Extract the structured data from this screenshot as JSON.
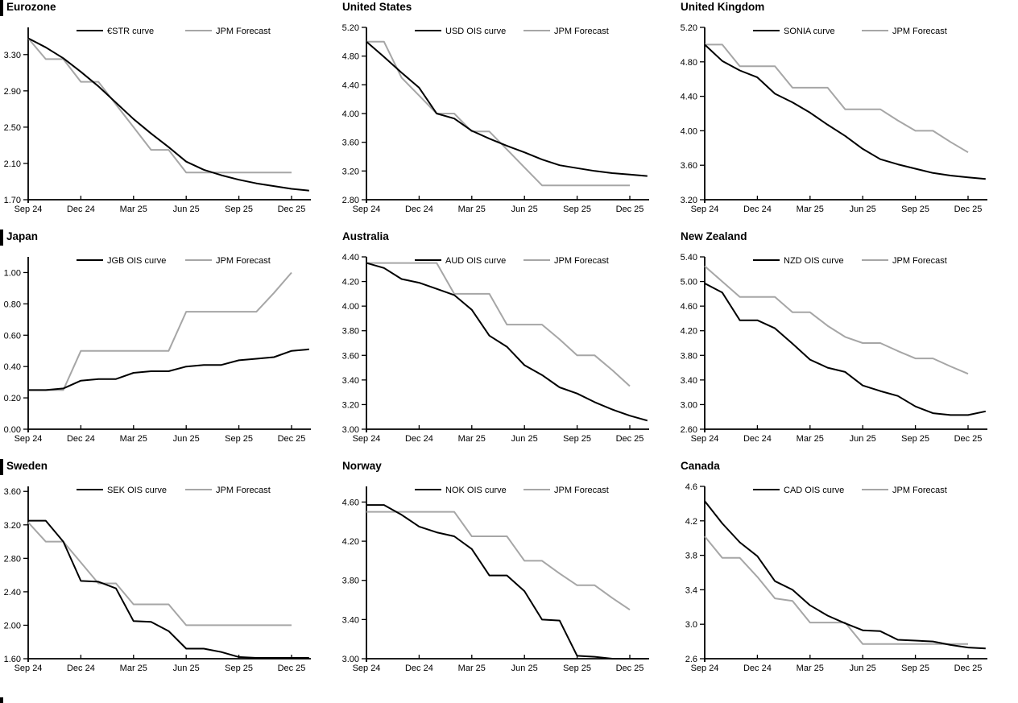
{
  "colors": {
    "ois_line": "#000000",
    "forecast_line": "#a6a6a6",
    "axis": "#000000",
    "text": "#000000",
    "background": "#ffffff"
  },
  "x_tick_labels": [
    "Sep 24",
    "Dec 24",
    "Mar 25",
    "Jun 25",
    "Sep 25",
    "Dec 25"
  ],
  "chart_data": [
    {
      "type": "line",
      "title": "Eurozone",
      "title_bar": true,
      "legend": [
        "€STR curve",
        "JPM Forecast"
      ],
      "x_tick_labels": [
        "Sep 24",
        "Dec 24",
        "Mar 25",
        "Jun 25",
        "Sep 25",
        "Dec 25"
      ],
      "ylim": [
        1.7,
        3.6
      ],
      "yticks": [
        1.7,
        2.1,
        2.5,
        2.9,
        3.3
      ],
      "y_decimals": 2,
      "series": [
        {
          "name": "€STR curve",
          "color": "#000000",
          "values": [
            3.48,
            3.38,
            3.26,
            3.11,
            2.95,
            2.77,
            2.59,
            2.43,
            2.28,
            2.12,
            2.03,
            1.97,
            1.92,
            1.88,
            1.85,
            1.82,
            1.8
          ]
        },
        {
          "name": "JPM Forecast",
          "color": "#a6a6a6",
          "values": [
            3.48,
            3.25,
            3.25,
            3.0,
            3.0,
            2.75,
            2.5,
            2.25,
            2.25,
            2.0,
            2.0,
            2.0,
            2.0,
            2.0,
            2.0,
            2.0
          ]
        }
      ]
    },
    {
      "type": "line",
      "title": "United States",
      "title_bar": false,
      "legend": [
        "USD OIS curve",
        "JPM Forecast"
      ],
      "x_tick_labels": [
        "Sep 24",
        "Dec 24",
        "Mar 25",
        "Jun 25",
        "Sep 25",
        "Dec 25"
      ],
      "ylim": [
        2.8,
        5.2
      ],
      "yticks": [
        2.8,
        3.2,
        3.6,
        4.0,
        4.4,
        4.8,
        5.2
      ],
      "y_decimals": 2,
      "series": [
        {
          "name": "USD OIS curve",
          "color": "#000000",
          "values": [
            5.0,
            4.79,
            4.57,
            4.36,
            4.0,
            3.93,
            3.76,
            3.65,
            3.55,
            3.46,
            3.36,
            3.28,
            3.24,
            3.2,
            3.17,
            3.15,
            3.13
          ]
        },
        {
          "name": "JPM Forecast",
          "color": "#a6a6a6",
          "values": [
            5.0,
            5.0,
            4.5,
            4.25,
            4.0,
            4.0,
            3.75,
            3.75,
            3.5,
            3.25,
            3.0,
            3.0,
            3.0,
            3.0,
            3.0,
            3.0
          ]
        }
      ]
    },
    {
      "type": "line",
      "title": "United Kingdom",
      "title_bar": false,
      "legend": [
        "SONIA curve",
        "JPM Forecast"
      ],
      "x_tick_labels": [
        "Sep 24",
        "Dec 24",
        "Mar 25",
        "Jun 25",
        "Sep 25",
        "Dec 25"
      ],
      "ylim": [
        3.2,
        5.2
      ],
      "yticks": [
        3.2,
        3.6,
        4.0,
        4.4,
        4.8,
        5.2
      ],
      "y_decimals": 2,
      "series": [
        {
          "name": "SONIA curve",
          "color": "#000000",
          "values": [
            5.0,
            4.81,
            4.7,
            4.62,
            4.43,
            4.33,
            4.21,
            4.07,
            3.94,
            3.79,
            3.67,
            3.61,
            3.56,
            3.51,
            3.48,
            3.46,
            3.44
          ]
        },
        {
          "name": "JPM Forecast",
          "color": "#a6a6a6",
          "values": [
            5.0,
            5.0,
            4.75,
            4.75,
            4.75,
            4.5,
            4.5,
            4.5,
            4.25,
            4.25,
            4.25,
            4.12,
            4.0,
            4.0,
            3.87,
            3.75
          ]
        }
      ]
    },
    {
      "type": "line",
      "title": "Japan",
      "title_bar": true,
      "legend": [
        "JGB OIS curve",
        "JPM Forecast"
      ],
      "x_tick_labels": [
        "Sep 24",
        "Dec 24",
        "Mar 25",
        "Jun 25",
        "Sep 25",
        "Dec 25"
      ],
      "ylim": [
        0.0,
        1.1
      ],
      "yticks": [
        0.0,
        0.2,
        0.4,
        0.6,
        0.8,
        1.0
      ],
      "y_decimals": 2,
      "series": [
        {
          "name": "JGB OIS curve",
          "color": "#000000",
          "values": [
            0.25,
            0.25,
            0.26,
            0.31,
            0.32,
            0.32,
            0.36,
            0.37,
            0.37,
            0.4,
            0.41,
            0.41,
            0.44,
            0.45,
            0.46,
            0.5,
            0.51
          ]
        },
        {
          "name": "JPM Forecast",
          "color": "#a6a6a6",
          "values": [
            0.25,
            0.25,
            0.25,
            0.5,
            0.5,
            0.5,
            0.5,
            0.5,
            0.5,
            0.75,
            0.75,
            0.75,
            0.75,
            0.75,
            0.87,
            1.0
          ]
        }
      ]
    },
    {
      "type": "line",
      "title": "Australia",
      "title_bar": false,
      "legend": [
        "AUD OIS curve",
        "JPM Forecast"
      ],
      "x_tick_labels": [
        "Sep 24",
        "Dec 24",
        "Mar 25",
        "Jun 25",
        "Sep 25",
        "Dec 25"
      ],
      "ylim": [
        3.0,
        4.4
      ],
      "yticks": [
        3.0,
        3.2,
        3.4,
        3.6,
        3.8,
        4.0,
        4.2,
        4.4
      ],
      "y_decimals": 2,
      "series": [
        {
          "name": "AUD OIS curve",
          "color": "#000000",
          "values": [
            4.35,
            4.31,
            4.22,
            4.19,
            4.14,
            4.09,
            3.97,
            3.76,
            3.67,
            3.52,
            3.44,
            3.34,
            3.29,
            3.22,
            3.16,
            3.11,
            3.07
          ]
        },
        {
          "name": "JPM Forecast",
          "color": "#a6a6a6",
          "values": [
            4.35,
            4.35,
            4.35,
            4.35,
            4.35,
            4.1,
            4.1,
            4.1,
            3.85,
            3.85,
            3.85,
            3.73,
            3.6,
            3.6,
            3.48,
            3.35
          ]
        }
      ]
    },
    {
      "type": "line",
      "title": "New Zealand",
      "title_bar": false,
      "legend": [
        "NZD OIS curve",
        "JPM Forecast"
      ],
      "x_tick_labels": [
        "Sep 24",
        "Dec 24",
        "Mar 25",
        "Jun 25",
        "Sep 25",
        "Dec 25"
      ],
      "ylim": [
        2.6,
        5.4
      ],
      "yticks": [
        2.6,
        3.0,
        3.4,
        3.8,
        4.2,
        4.6,
        5.0,
        5.4
      ],
      "y_decimals": 2,
      "series": [
        {
          "name": "NZD OIS curve",
          "color": "#000000",
          "values": [
            4.97,
            4.82,
            4.37,
            4.37,
            4.24,
            3.99,
            3.73,
            3.6,
            3.53,
            3.31,
            3.22,
            3.14,
            2.97,
            2.86,
            2.83,
            2.83,
            2.89
          ]
        },
        {
          "name": "JPM Forecast",
          "color": "#a6a6a6",
          "values": [
            5.25,
            5.0,
            4.75,
            4.75,
            4.75,
            4.5,
            4.5,
            4.28,
            4.1,
            4.0,
            4.0,
            3.87,
            3.75,
            3.75,
            3.62,
            3.5
          ]
        }
      ]
    },
    {
      "type": "line",
      "title": "Sweden",
      "title_bar": true,
      "legend": [
        "SEK OIS curve",
        "JPM Forecast"
      ],
      "x_tick_labels": [
        "Sep 24",
        "Dec 24",
        "Mar 25",
        "Jun 25",
        "Sep 25",
        "Dec 25"
      ],
      "ylim": [
        1.6,
        3.66
      ],
      "yticks": [
        1.6,
        2.0,
        2.4,
        2.8,
        3.2,
        3.6
      ],
      "y_decimals": 2,
      "series": [
        {
          "name": "SEK OIS curve",
          "color": "#000000",
          "values": [
            3.25,
            3.25,
            3.0,
            2.53,
            2.52,
            2.44,
            2.05,
            2.04,
            1.93,
            1.72,
            1.72,
            1.68,
            1.62,
            1.61,
            1.61,
            1.61,
            1.61
          ]
        },
        {
          "name": "JPM Forecast",
          "color": "#a6a6a6",
          "values": [
            3.23,
            3.0,
            3.0,
            2.75,
            2.5,
            2.5,
            2.25,
            2.25,
            2.25,
            2.0,
            2.0,
            2.0,
            2.0,
            2.0,
            2.0,
            2.0
          ]
        }
      ]
    },
    {
      "type": "line",
      "title": "Norway",
      "title_bar": false,
      "legend": [
        "NOK OIS curve",
        "JPM Forecast"
      ],
      "x_tick_labels": [
        "Sep 24",
        "Dec 24",
        "Mar 25",
        "Jun 25",
        "Sep 25",
        "Dec 25"
      ],
      "ylim": [
        3.0,
        4.76
      ],
      "yticks": [
        3.0,
        3.4,
        3.8,
        4.2,
        4.6
      ],
      "y_decimals": 2,
      "series": [
        {
          "name": "NOK OIS curve",
          "color": "#000000",
          "values": [
            4.57,
            4.57,
            4.47,
            4.35,
            4.29,
            4.25,
            4.12,
            3.85,
            3.85,
            3.69,
            3.4,
            3.39,
            3.03,
            3.02,
            3.0,
            3.0,
            3.0
          ]
        },
        {
          "name": "JPM Forecast",
          "color": "#a6a6a6",
          "values": [
            4.5,
            4.5,
            4.5,
            4.5,
            4.5,
            4.5,
            4.25,
            4.25,
            4.25,
            4.0,
            4.0,
            3.87,
            3.75,
            3.75,
            3.62,
            3.5
          ]
        }
      ]
    },
    {
      "type": "line",
      "title": "Canada",
      "title_bar": false,
      "legend": [
        "CAD OIS curve",
        "JPM Forecast"
      ],
      "x_tick_labels": [
        "Sep 24",
        "Dec 24",
        "Mar 25",
        "Jun 25",
        "Sep 25",
        "Dec 25"
      ],
      "ylim": [
        2.6,
        4.6
      ],
      "yticks": [
        2.6,
        3.0,
        3.4,
        3.8,
        4.2,
        4.6
      ],
      "y_decimals": 1,
      "series": [
        {
          "name": "CAD OIS curve",
          "color": "#000000",
          "values": [
            4.43,
            4.17,
            3.95,
            3.79,
            3.5,
            3.4,
            3.22,
            3.1,
            3.01,
            2.93,
            2.92,
            2.82,
            2.81,
            2.8,
            2.76,
            2.73,
            2.72
          ]
        },
        {
          "name": "JPM Forecast",
          "color": "#a6a6a6",
          "values": [
            4.02,
            3.77,
            3.77,
            3.55,
            3.3,
            3.27,
            3.02,
            3.02,
            3.02,
            2.77,
            2.77,
            2.77,
            2.77,
            2.77,
            2.77,
            2.77
          ]
        }
      ]
    }
  ]
}
